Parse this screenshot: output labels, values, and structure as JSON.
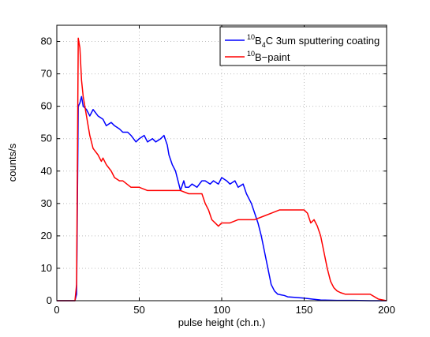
{
  "chart_data": {
    "type": "line",
    "title": "",
    "xlabel": "pulse height (ch.n.)",
    "ylabel": "counts/s",
    "xlim": [
      0,
      200
    ],
    "ylim": [
      0,
      85
    ],
    "xticks": [
      0,
      50,
      100,
      150,
      200
    ],
    "xtick_labels": [
      "0",
      "50",
      "100",
      "150",
      "200"
    ],
    "yticks": [
      0,
      10,
      20,
      30,
      40,
      50,
      60,
      70,
      80
    ],
    "ytick_labels": [
      "0",
      "10",
      "20",
      "30",
      "40",
      "50",
      "60",
      "70",
      "80"
    ],
    "grid": true,
    "legend_position": "top-right",
    "series": [
      {
        "name": "10B4C 3um sputtering coating",
        "legend": {
          "sup": "10",
          "base1": "B",
          "sub": "4",
          "base2": "C 3um sputtering coating"
        },
        "color": "#0000ff",
        "x": [
          0,
          11,
          12,
          13,
          14,
          15,
          16,
          18,
          20,
          22,
          25,
          28,
          30,
          33,
          35,
          38,
          40,
          43,
          45,
          48,
          50,
          53,
          55,
          58,
          60,
          63,
          65,
          67,
          68,
          70,
          72,
          74,
          75,
          77,
          78,
          80,
          82,
          85,
          88,
          90,
          93,
          95,
          98,
          100,
          103,
          105,
          108,
          110,
          113,
          115,
          117,
          118,
          120,
          122,
          124,
          126,
          128,
          130,
          132,
          134,
          136,
          138,
          140,
          145,
          150,
          155,
          160,
          170,
          180,
          190,
          200
        ],
        "y": [
          0,
          0,
          2,
          60,
          61,
          63,
          60,
          59,
          57,
          59,
          57,
          56,
          54,
          55,
          54,
          53,
          52,
          52,
          51,
          49,
          50,
          51,
          49,
          50,
          49,
          50,
          51,
          48,
          45,
          42,
          40,
          36,
          34,
          37,
          35,
          35,
          36,
          35,
          37,
          37,
          36,
          37,
          36,
          38,
          37,
          36,
          37,
          35,
          36,
          33,
          31,
          30,
          27,
          24,
          20,
          15,
          10,
          5,
          3,
          2,
          1.8,
          1.6,
          1.2,
          1,
          0.8,
          0.5,
          0.2,
          0.1,
          0.1,
          0,
          0
        ]
      },
      {
        "name": "10B-paint",
        "legend": {
          "sup": "10",
          "base1": "B−paint",
          "sub": "",
          "base2": ""
        },
        "color": "#ff0000",
        "x": [
          0,
          11,
          12,
          13,
          14,
          15,
          16,
          18,
          20,
          22,
          25,
          27,
          28,
          30,
          33,
          35,
          38,
          40,
          45,
          50,
          55,
          60,
          65,
          70,
          75,
          80,
          85,
          88,
          90,
          92,
          94,
          96,
          98,
          100,
          105,
          110,
          115,
          120,
          125,
          130,
          135,
          140,
          145,
          150,
          152,
          154,
          156,
          158,
          160,
          162,
          164,
          166,
          168,
          170,
          172,
          175,
          180,
          185,
          190,
          195,
          200
        ],
        "y": [
          0,
          0,
          5,
          81,
          78,
          68,
          63,
          57,
          51,
          47,
          45,
          43,
          44,
          42,
          40,
          38,
          37,
          37,
          35,
          35,
          34,
          34,
          34,
          34,
          34,
          33,
          33,
          33,
          30,
          28,
          25,
          24,
          23,
          24,
          24,
          25,
          25,
          25,
          26,
          27,
          28,
          28,
          28,
          28,
          27,
          24,
          25,
          23,
          20,
          15,
          10,
          6,
          4,
          3,
          2.5,
          2,
          2,
          2,
          2,
          0.5,
          0
        ]
      }
    ]
  }
}
